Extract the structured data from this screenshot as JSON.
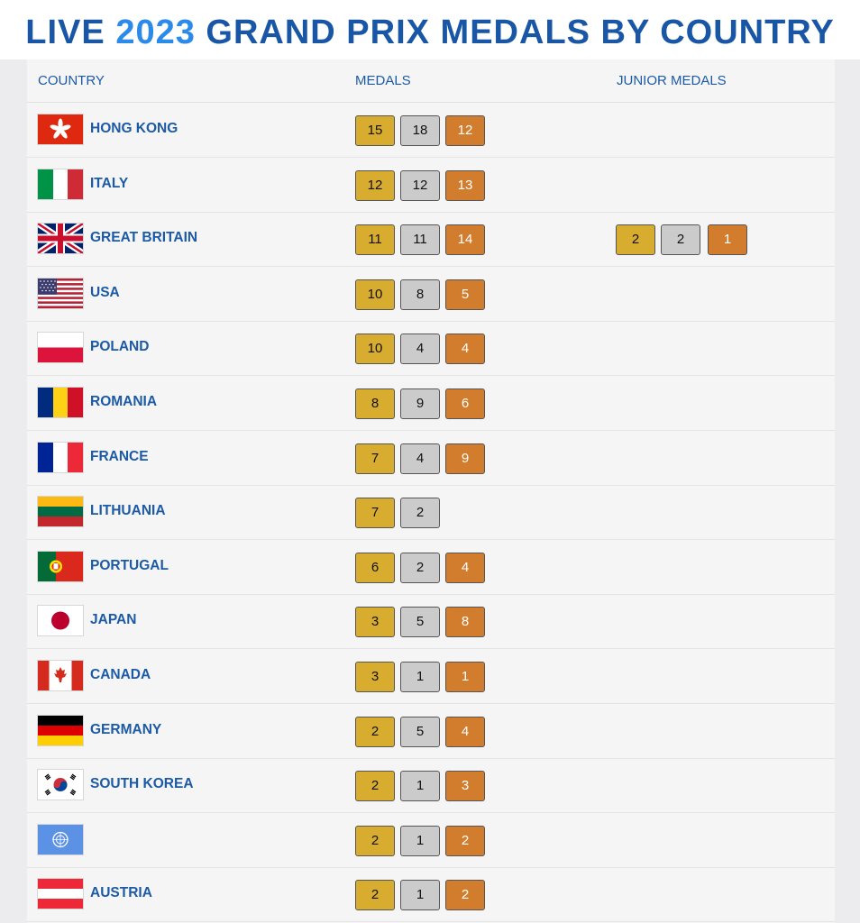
{
  "title": {
    "prefix": "LIVE",
    "year": "2023",
    "suffix": "GRAND PRIX MEDALS BY COUNTRY"
  },
  "headers": {
    "country": "COUNTRY",
    "medals": "MEDALS",
    "junior": "JUNIOR MEDALS"
  },
  "colors": {
    "title": "#1a56a6",
    "year": "#2c8be8",
    "gold": "#d8ac2e",
    "silver": "#cbcbcb",
    "bronze": "#d17d2d"
  },
  "rows": [
    {
      "flag": "hong-kong-flag",
      "name": "HONG KONG",
      "medals": {
        "gold": "15",
        "silver": "18",
        "bronze": "12"
      }
    },
    {
      "flag": "italy-flag",
      "name": "ITALY",
      "medals": {
        "gold": "12",
        "silver": "12",
        "bronze": "13"
      }
    },
    {
      "flag": "great-britain-flag",
      "name": "GREAT BRITAIN",
      "medals": {
        "gold": "11",
        "silver": "11",
        "bronze": "14"
      },
      "junior": {
        "gold": "2",
        "silver": "2",
        "bronze": "1"
      }
    },
    {
      "flag": "usa-flag",
      "name": "USA",
      "medals": {
        "gold": "10",
        "silver": "8",
        "bronze": "5"
      }
    },
    {
      "flag": "poland-flag",
      "name": "POLAND",
      "medals": {
        "gold": "10",
        "silver": "4",
        "bronze": "4"
      }
    },
    {
      "flag": "romania-flag",
      "name": "ROMANIA",
      "medals": {
        "gold": "8",
        "silver": "9",
        "bronze": "6"
      }
    },
    {
      "flag": "france-flag",
      "name": "FRANCE",
      "medals": {
        "gold": "7",
        "silver": "4",
        "bronze": "9"
      }
    },
    {
      "flag": "lithuania-flag",
      "name": "LITHUANIA",
      "medals": {
        "gold": "7",
        "silver": "2"
      }
    },
    {
      "flag": "portugal-flag",
      "name": "PORTUGAL",
      "medals": {
        "gold": "6",
        "silver": "2",
        "bronze": "4"
      }
    },
    {
      "flag": "japan-flag",
      "name": "JAPAN",
      "medals": {
        "gold": "3",
        "silver": "5",
        "bronze": "8"
      }
    },
    {
      "flag": "canada-flag",
      "name": "CANADA",
      "medals": {
        "gold": "3",
        "silver": "1",
        "bronze": "1"
      }
    },
    {
      "flag": "germany-flag",
      "name": "GERMANY",
      "medals": {
        "gold": "2",
        "silver": "5",
        "bronze": "4"
      }
    },
    {
      "flag": "south-korea-flag",
      "name": "SOUTH KOREA",
      "medals": {
        "gold": "2",
        "silver": "1",
        "bronze": "3"
      }
    },
    {
      "flag": "united-nations-flag",
      "name": "",
      "medals": {
        "gold": "2",
        "silver": "1",
        "bronze": "2"
      }
    },
    {
      "flag": "austria-flag",
      "name": "AUSTRIA",
      "medals": {
        "gold": "2",
        "silver": "1",
        "bronze": "2"
      }
    }
  ]
}
